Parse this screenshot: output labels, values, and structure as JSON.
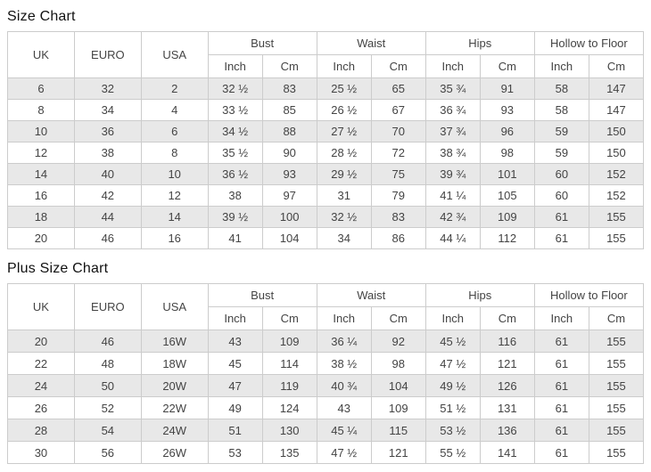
{
  "columns": {
    "uk": "UK",
    "euro": "EURO",
    "usa": "USA",
    "bust": "Bust",
    "waist": "Waist",
    "hips": "Hips",
    "hollow_to_floor": "Hollow to Floor",
    "inch": "Inch",
    "cm": "Cm"
  },
  "size_chart": {
    "title": "Size Chart",
    "rows": [
      [
        "6",
        "32",
        "2",
        "32 ½",
        "83",
        "25 ½",
        "65",
        "35 ¾",
        "91",
        "58",
        "147"
      ],
      [
        "8",
        "34",
        "4",
        "33 ½",
        "85",
        "26 ½",
        "67",
        "36 ¾",
        "93",
        "58",
        "147"
      ],
      [
        "10",
        "36",
        "6",
        "34 ½",
        "88",
        "27 ½",
        "70",
        "37 ¾",
        "96",
        "59",
        "150"
      ],
      [
        "12",
        "38",
        "8",
        "35 ½",
        "90",
        "28 ½",
        "72",
        "38 ¾",
        "98",
        "59",
        "150"
      ],
      [
        "14",
        "40",
        "10",
        "36 ½",
        "93",
        "29 ½",
        "75",
        "39 ¾",
        "101",
        "60",
        "152"
      ],
      [
        "16",
        "42",
        "12",
        "38",
        "97",
        "31",
        "79",
        "41 ¼",
        "105",
        "60",
        "152"
      ],
      [
        "18",
        "44",
        "14",
        "39 ½",
        "100",
        "32 ½",
        "83",
        "42 ¾",
        "109",
        "61",
        "155"
      ],
      [
        "20",
        "46",
        "16",
        "41",
        "104",
        "34",
        "86",
        "44 ¼",
        "112",
        "61",
        "155"
      ]
    ]
  },
  "plus_size_chart": {
    "title": "Plus Size Chart",
    "rows": [
      [
        "20",
        "46",
        "16W",
        "43",
        "109",
        "36 ¼",
        "92",
        "45 ½",
        "116",
        "61",
        "155"
      ],
      [
        "22",
        "48",
        "18W",
        "45",
        "114",
        "38 ½",
        "98",
        "47 ½",
        "121",
        "61",
        "155"
      ],
      [
        "24",
        "50",
        "20W",
        "47",
        "119",
        "40 ¾",
        "104",
        "49 ½",
        "126",
        "61",
        "155"
      ],
      [
        "26",
        "52",
        "22W",
        "49",
        "124",
        "43",
        "109",
        "51 ½",
        "131",
        "61",
        "155"
      ],
      [
        "28",
        "54",
        "24W",
        "51",
        "130",
        "45 ¼",
        "115",
        "53 ½",
        "136",
        "61",
        "155"
      ],
      [
        "30",
        "56",
        "26W",
        "53",
        "135",
        "47 ½",
        "121",
        "55 ½",
        "141",
        "61",
        "155"
      ]
    ]
  },
  "colors": {
    "row_alt_background": "#e8e8e8",
    "table_border": "#cccccc",
    "text": "#444444"
  }
}
